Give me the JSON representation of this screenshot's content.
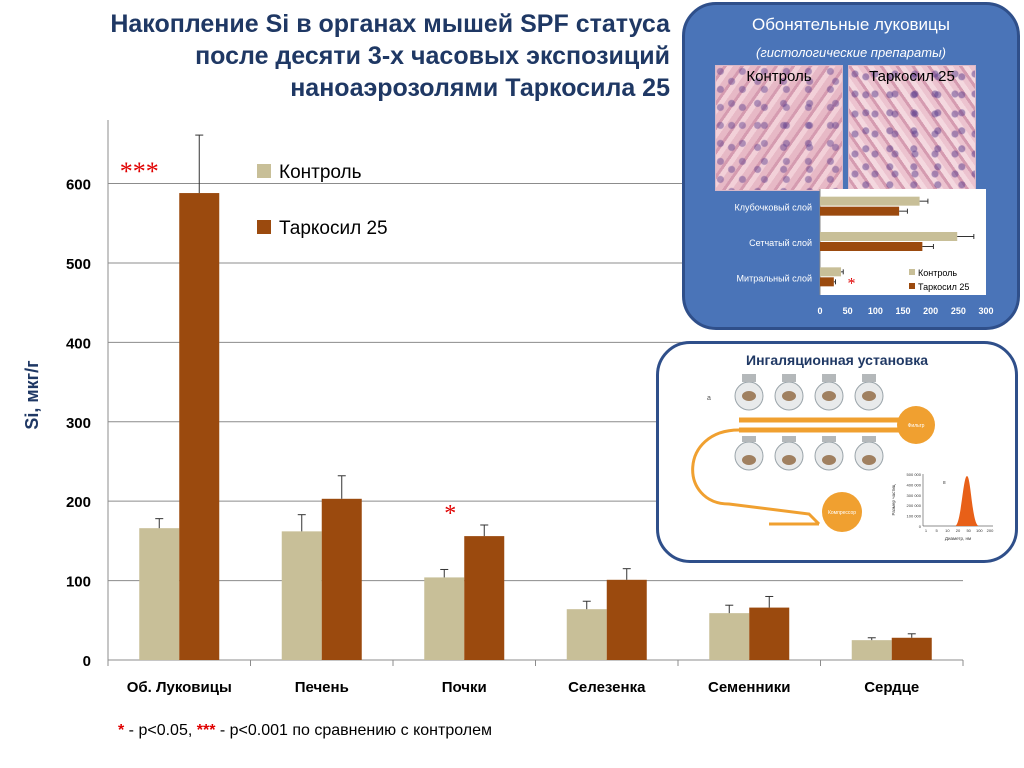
{
  "title_lines": [
    "Накопление Si в органах мышей SPF статуса",
    "после десяти 3-х часовых экспозиций",
    "наноаэрозолями Таркосила 25"
  ],
  "footnote": {
    "star1": "*",
    "text1": " - p<0.05, ",
    "star3": "***",
    "text2": " - p<0.001 по сравнению с контролем"
  },
  "colors": {
    "control": "#c8bf98",
    "tarkosil": "#9b4a0e",
    "significance": "#e00000",
    "title": "#1f3864",
    "panel": "#4a74b8"
  },
  "chart_data": [
    {
      "type": "bar",
      "ylabel": "Si, мкг/г",
      "ylim": [
        0,
        680
      ],
      "yticks": [
        0,
        100,
        200,
        300,
        400,
        500,
        600
      ],
      "grid": true,
      "legend_placement": "top-center",
      "categories": [
        "Об. Луковицы",
        "Печень",
        "Почки",
        "Селезенка",
        "Семенники",
        "Сердце"
      ],
      "series": [
        {
          "name": "Контроль",
          "values": [
            166,
            162,
            104,
            64,
            59,
            25
          ],
          "error": [
            12,
            21,
            10,
            10,
            10,
            3
          ]
        },
        {
          "name": "Таркосил 25",
          "values": [
            588,
            203,
            156,
            101,
            66,
            28
          ],
          "error": [
            73,
            29,
            14,
            14,
            14,
            5
          ]
        }
      ],
      "annotations": [
        {
          "category": "Об. Луковицы",
          "text": "***"
        },
        {
          "category": "Почки",
          "text": "*"
        }
      ]
    },
    {
      "type": "bar",
      "orientation": "horizontal",
      "title": "Обонятельные луковицы",
      "subtitle": "(гистологические препараты)",
      "image_labels": [
        "Контроль",
        "Таркосил 25"
      ],
      "categories": [
        "Клубочковый слой",
        "Сетчатый слой",
        "Митральный слой"
      ],
      "xlim": [
        0,
        300
      ],
      "xticks": [
        0,
        50,
        100,
        150,
        200,
        250,
        300
      ],
      "legend_placement": "bottom-right",
      "series": [
        {
          "name": "Контроль",
          "values": [
            180,
            248,
            38
          ],
          "error": [
            15,
            30,
            4
          ]
        },
        {
          "name": "Таркосил 25",
          "values": [
            143,
            185,
            25
          ],
          "error": [
            15,
            20,
            3
          ]
        }
      ],
      "annotations": [
        {
          "category": "Митральный слой",
          "text": "*"
        }
      ]
    }
  ],
  "inhalation": {
    "title": "Ингаляционная установка",
    "filter_label": "Фильтр",
    "compressor_label": "Компрессор",
    "panel_letters": [
      "а",
      "в"
    ],
    "dist_ylabel": "Размер частиц",
    "dist_xlabel": "Диаметр, нм",
    "dist_yticks": [
      "500 000",
      "400 000",
      "300 000",
      "200 000",
      "100 000",
      "0"
    ],
    "dist_xticks": [
      "1",
      "5",
      "10",
      "20",
      "50",
      "100",
      "200"
    ]
  }
}
